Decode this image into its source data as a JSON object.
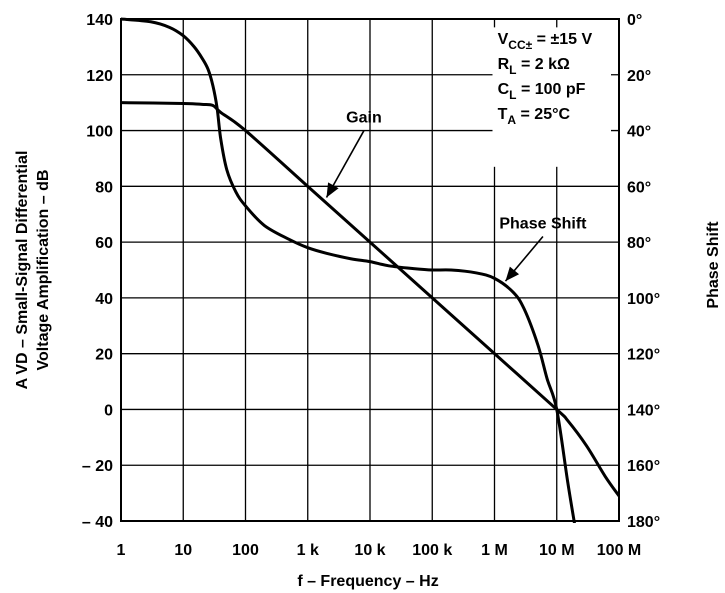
{
  "chart_data": {
    "type": "line",
    "title": "",
    "xlabel": "f – Frequency – Hz",
    "ylabel_line1": "A VD – Small-Signal Differential",
    "ylabel_line2": "Voltage Amplification – dB",
    "y2label": "Phase Shift",
    "xscale": "log",
    "xlim": [
      1,
      100000000
    ],
    "ylim": [
      -40,
      140
    ],
    "y2lim": [
      0,
      180
    ],
    "y2_inverted": true,
    "grid": true,
    "x_tick_labels": [
      "1",
      "10",
      "100",
      "1 k",
      "10 k",
      "100 k",
      "1 M",
      "10 M",
      "100 M"
    ],
    "x_tick_values": [
      1,
      10,
      100,
      1000,
      10000,
      100000,
      1000000,
      10000000,
      100000000
    ],
    "y_tick_labels": [
      "140",
      "120",
      "100",
      "80",
      "60",
      "40",
      "20",
      "0",
      "– 20",
      "– 40"
    ],
    "y_tick_values": [
      140,
      120,
      100,
      80,
      60,
      40,
      20,
      0,
      -20,
      -40
    ],
    "y2_tick_labels": [
      "0°",
      "20°",
      "40°",
      "60°",
      "80°",
      "100°",
      "120°",
      "140°",
      "160°",
      "180°"
    ],
    "y2_tick_values": [
      0,
      20,
      40,
      60,
      80,
      100,
      120,
      140,
      160,
      180
    ],
    "conditions": [
      {
        "main": "V",
        "sub": "CC±",
        "rest": " = ±15 V"
      },
      {
        "main": "R",
        "sub": "L",
        "rest": " = 2 kΩ"
      },
      {
        "main": "C",
        "sub": "L",
        "rest": " = 100 pF"
      },
      {
        "main": "T",
        "sub": "A",
        "rest": " = 25°C"
      }
    ],
    "annotations": [
      {
        "text": "Gain",
        "arrow_from": [
          8000,
          100
        ],
        "arrow_to": [
          2000,
          76
        ]
      },
      {
        "text": "Phase Shift",
        "arrow_from": [
          6000000,
          62
        ],
        "arrow_to": [
          1500000,
          46
        ]
      }
    ],
    "series": [
      {
        "name": "Gain",
        "axis": "left",
        "x": [
          1,
          10,
          20,
          30,
          40,
          100,
          1000,
          10000,
          100000,
          1000000,
          10000000,
          15000000,
          30000000,
          60000000,
          100000000
        ],
        "y": [
          110,
          109.7,
          109.4,
          109,
          106.5,
          100,
          80,
          60,
          40,
          20,
          0,
          -4,
          -13,
          -24,
          -31
        ]
      },
      {
        "name": "Phase Shift",
        "axis": "right",
        "x": [
          1,
          3,
          6,
          10,
          15,
          20,
          25,
          30,
          35,
          40,
          50,
          70,
          100,
          200,
          500,
          1000,
          2000,
          5000,
          10000,
          20000,
          50000,
          100000,
          200000,
          500000,
          1000000,
          2000000,
          3000000,
          5000000,
          7000000,
          10000000,
          15000000,
          20000000
        ],
        "y": [
          0,
          1,
          3,
          6,
          10,
          14,
          18,
          24,
          32,
          43,
          54,
          62,
          67,
          74,
          79,
          82,
          84,
          86,
          87,
          88.5,
          89.5,
          90,
          90,
          91,
          93,
          98,
          104,
          117,
          129,
          140,
          166,
          183
        ]
      }
    ]
  }
}
